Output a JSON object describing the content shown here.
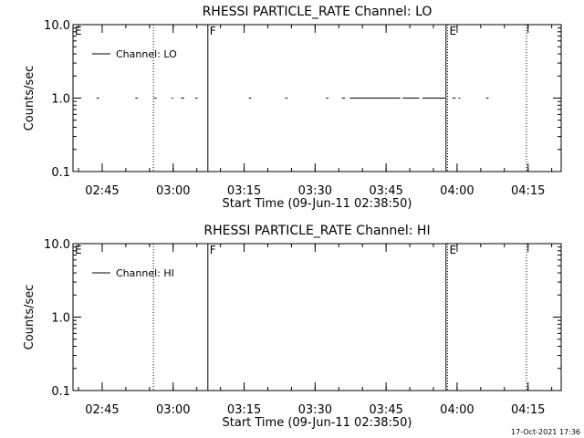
{
  "chart_data": [
    {
      "type": "line",
      "title": "RHESSI PARTICLE_RATE Channel: LO",
      "xlabel": "Start Time (09-Jun-11 02:38:50)",
      "ylabel": "Counts/sec",
      "scale_y": "log",
      "xlim": [
        "02:38:50",
        "04:22:00"
      ],
      "ylim": [
        0.1,
        10.0
      ],
      "x_ticks": [
        "02:45",
        "03:00",
        "03:15",
        "03:30",
        "03:45",
        "04:00",
        "04:15"
      ],
      "y_ticks": [
        "0.1",
        "1.0",
        "10.0"
      ],
      "grid": false,
      "legend": {
        "position": "top-left",
        "entries": [
          "Channel: LO"
        ]
      },
      "series": [
        {
          "name": "Channel: LO",
          "segments": [
            [
              "02:43:50",
              "02:44:20"
            ],
            [
              "02:52:00",
              "02:52:30"
            ],
            [
              "02:56:00",
              "02:56:30"
            ],
            [
              "02:59:40",
              "03:00:00"
            ],
            [
              "03:01:40",
              "03:02:20"
            ],
            [
              "03:04:40",
              "03:05:10"
            ],
            [
              "03:16:00",
              "03:16:30"
            ],
            [
              "03:23:40",
              "03:24:10"
            ],
            [
              "03:32:20",
              "03:32:50"
            ],
            [
              "03:35:40",
              "03:36:20"
            ],
            [
              "03:37:20",
              "03:48:00"
            ],
            [
              "03:48:30",
              "03:52:00"
            ],
            [
              "03:52:40",
              "03:57:30"
            ],
            [
              "03:59:00",
              "03:59:40"
            ],
            [
              "04:00:20",
              "04:00:40"
            ],
            [
              "04:06:10",
              "04:06:40"
            ]
          ],
          "values_y": 1.0
        }
      ],
      "markers": [
        {
          "label": "E",
          "time": "02:38:50",
          "style": "dotted"
        },
        {
          "label": "",
          "time": "02:55:50",
          "style": "dotted"
        },
        {
          "label": "F",
          "time": "03:07:20",
          "style": "solid"
        },
        {
          "label": "",
          "time": "03:57:40",
          "style": "solid"
        },
        {
          "label": "E",
          "time": "03:58:00",
          "style": "dotted"
        },
        {
          "label": "",
          "time": "04:14:40",
          "style": "dotted"
        }
      ]
    },
    {
      "type": "line",
      "title": "RHESSI PARTICLE_RATE Channel: HI",
      "xlabel": "Start Time (09-Jun-11 02:38:50)",
      "ylabel": "Counts/sec",
      "scale_y": "log",
      "xlim": [
        "02:38:50",
        "04:22:00"
      ],
      "ylim": [
        0.1,
        10.0
      ],
      "x_ticks": [
        "02:45",
        "03:00",
        "03:15",
        "03:30",
        "03:45",
        "04:00",
        "04:15"
      ],
      "y_ticks": [
        "0.1",
        "1.0",
        "10.0"
      ],
      "grid": false,
      "legend": {
        "position": "top-left",
        "entries": [
          "Channel: HI"
        ]
      },
      "series": [
        {
          "name": "Channel: HI",
          "segments": [],
          "values_y": 1.0
        }
      ],
      "markers": [
        {
          "label": "E",
          "time": "02:38:50",
          "style": "dotted"
        },
        {
          "label": "",
          "time": "02:55:50",
          "style": "dotted"
        },
        {
          "label": "F",
          "time": "03:07:20",
          "style": "solid"
        },
        {
          "label": "",
          "time": "03:57:40",
          "style": "solid"
        },
        {
          "label": "E",
          "time": "03:58:00",
          "style": "dotted"
        },
        {
          "label": "",
          "time": "04:14:40",
          "style": "dotted"
        }
      ]
    }
  ],
  "footer": {
    "timestamp": "17-Oct-2021 17:36"
  }
}
